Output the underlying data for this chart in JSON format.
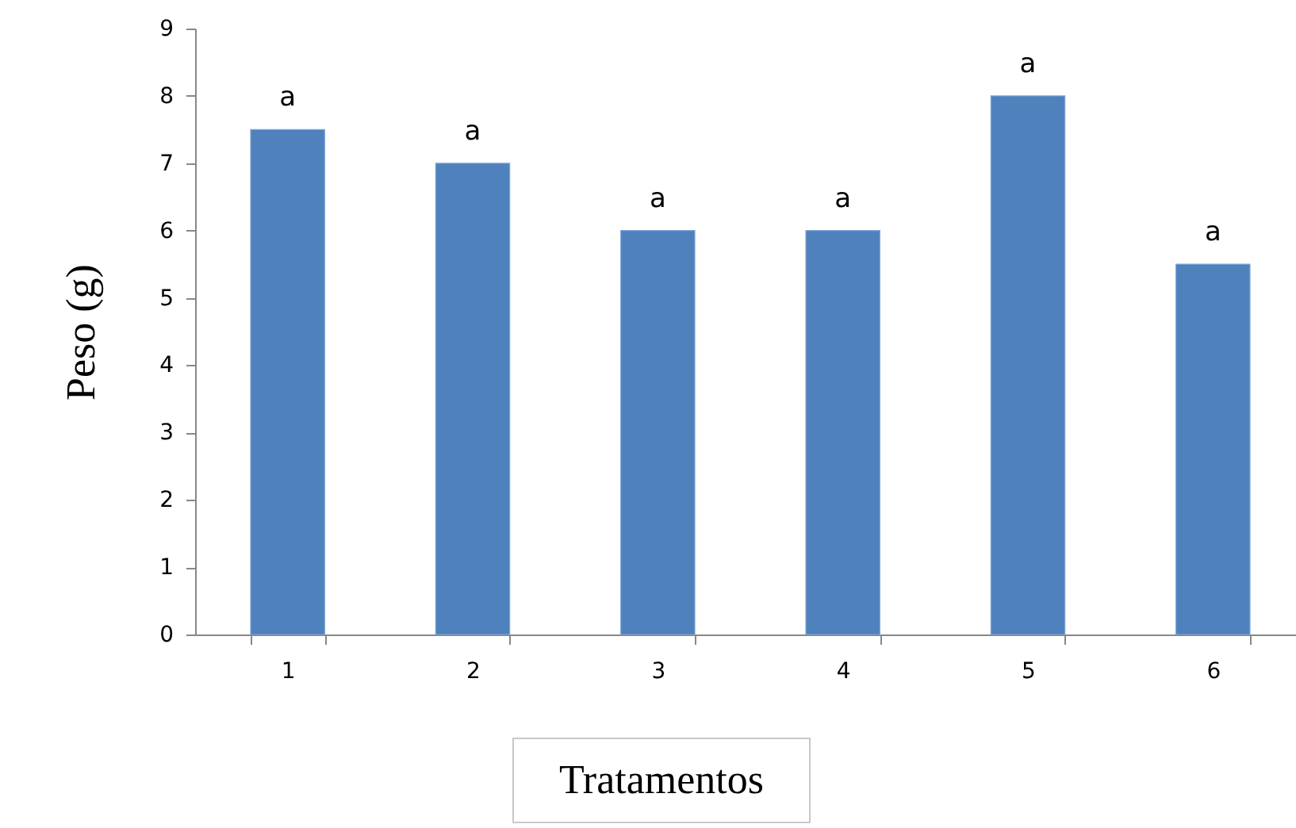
{
  "chart_data": {
    "type": "bar",
    "xlabel": "Tratamentos",
    "ylabel": "Peso (g)",
    "categories": [
      "1",
      "2",
      "3",
      "4",
      "5",
      "6"
    ],
    "values": [
      7.5,
      7,
      6,
      6,
      8,
      5.5
    ],
    "color": "#4f81bd",
    "ylim": [
      0,
      9
    ],
    "yticks": [
      0,
      1,
      2,
      3,
      4,
      5,
      6,
      7,
      8,
      9
    ],
    "grid": false,
    "annotations": [
      {
        "text": "a",
        "x": "1",
        "y": 7.5
      },
      {
        "text": "a",
        "x": "2",
        "y": 7
      },
      {
        "text": "a",
        "x": "3",
        "y": 6
      },
      {
        "text": "a",
        "x": "4",
        "y": 6
      },
      {
        "text": "a",
        "x": "5",
        "y": 8
      },
      {
        "text": "a",
        "x": "6",
        "y": 5.5
      }
    ]
  }
}
